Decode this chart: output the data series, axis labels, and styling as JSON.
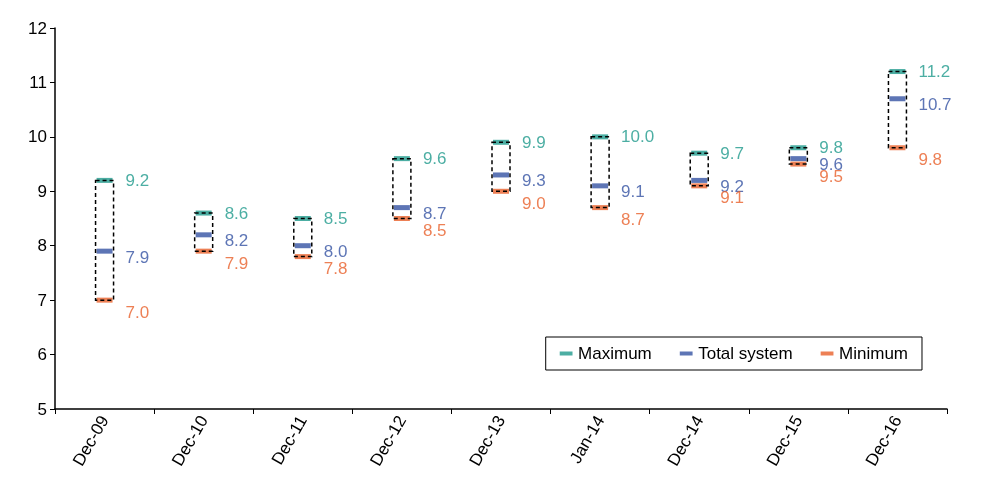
{
  "chart_data": {
    "type": "scatter",
    "categories": [
      "Dec-09",
      "Dec-10",
      "Dec-11",
      "Dec-12",
      "Dec-13",
      "Jan-14",
      "Dec-14",
      "Dec-15",
      "Dec-16"
    ],
    "series": [
      {
        "name": "Maximum",
        "color": "#1f9a8c",
        "values": [
          9.2,
          8.6,
          8.5,
          9.6,
          9.9,
          10.0,
          9.7,
          9.8,
          11.2
        ],
        "value_labels": [
          "9.2",
          "8.6",
          "8.5",
          "9.6",
          "9.9",
          "10.0",
          "9.7",
          "9.8",
          "11.2"
        ]
      },
      {
        "name": "Total system",
        "color": "#3553a3",
        "values": [
          7.9,
          8.2,
          8.0,
          8.7,
          9.3,
          9.1,
          9.2,
          9.6,
          10.7
        ],
        "value_labels": [
          "7.9",
          "8.2",
          "8.0",
          "8.7",
          "9.3",
          "9.1",
          "9.2",
          "9.6",
          "10.7"
        ]
      },
      {
        "name": "Minimum",
        "color": "#e8602a",
        "values": [
          7.0,
          7.9,
          7.8,
          8.5,
          9.0,
          8.7,
          9.1,
          9.5,
          9.8
        ],
        "value_labels": [
          "7.0",
          "7.9",
          "7.8",
          "8.5",
          "9.0",
          "8.7",
          "9.1",
          "9.5",
          "9.8"
        ]
      }
    ],
    "ylim": [
      5,
      12
    ],
    "yticks": [
      5,
      6,
      7,
      8,
      9,
      10,
      11,
      12
    ],
    "grid": false,
    "legend": "bottom right"
  }
}
